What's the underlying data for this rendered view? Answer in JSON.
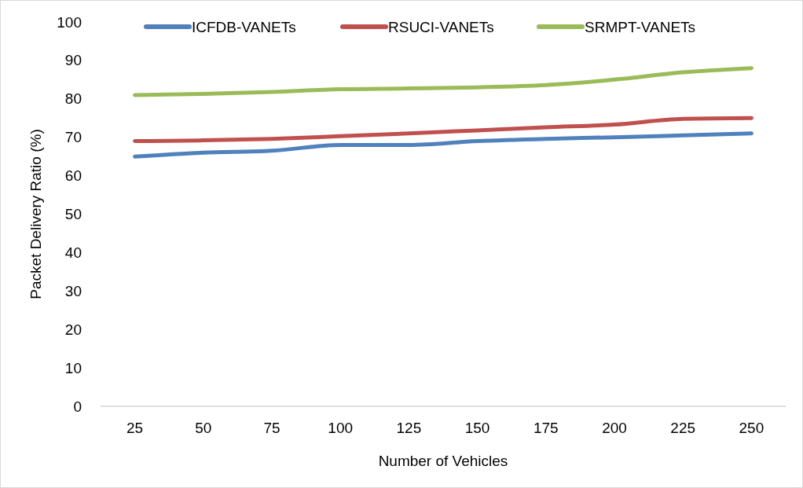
{
  "chart_data": {
    "type": "line",
    "xlabel": "Number of Vehicles",
    "ylabel": "Packet Delivery Ratio (%)",
    "categories": [
      "25",
      "50",
      "75",
      "100",
      "125",
      "150",
      "175",
      "200",
      "225",
      "250"
    ],
    "series": [
      {
        "name": "ICFDB-VANETs",
        "color": "#4f81bd",
        "values": [
          65,
          66,
          66.5,
          68,
          68,
          69,
          69.6,
          70,
          70.5,
          71
        ]
      },
      {
        "name": "RSUCI-VANETs",
        "color": "#c0504d",
        "values": [
          69,
          69.2,
          69.6,
          70.3,
          71,
          71.8,
          72.6,
          73.3,
          74.8,
          75
        ]
      },
      {
        "name": "SRMPT-VANETs",
        "color": "#9bbb59",
        "values": [
          81,
          81.3,
          81.8,
          82.5,
          82.7,
          83,
          83.6,
          85,
          86.9,
          88
        ]
      }
    ],
    "ylim": [
      0,
      100
    ],
    "yticks": [
      0,
      10,
      20,
      30,
      40,
      50,
      60,
      70,
      80,
      90,
      100
    ],
    "grid": false,
    "legend": "top",
    "marker": "none",
    "line_style": "solid"
  }
}
